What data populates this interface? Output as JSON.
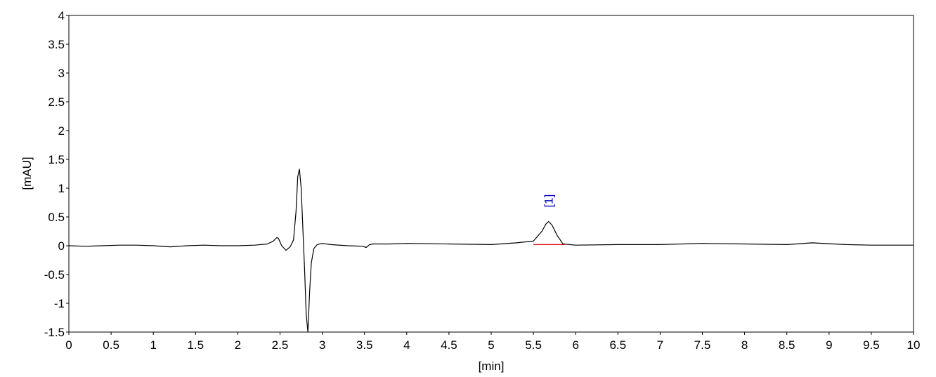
{
  "chart_data": {
    "type": "line",
    "title": "",
    "xlabel": "[min]",
    "ylabel": "[mAU]",
    "xlim": [
      0,
      10
    ],
    "ylim": [
      -1.5,
      4
    ],
    "x_ticks": [
      "0",
      "0.5",
      "1",
      "1.5",
      "2",
      "2.5",
      "3",
      "3.5",
      "4",
      "4.5",
      "5",
      "5.5",
      "6",
      "6.5",
      "7",
      "7.5",
      "8",
      "8.5",
      "9",
      "9.5",
      "10"
    ],
    "y_ticks": [
      "-1.5",
      "-1",
      "-0.5",
      "0",
      "0.5",
      "1",
      "1.5",
      "2",
      "2.5",
      "3",
      "3.5",
      "4"
    ],
    "grid": false,
    "series": [
      {
        "color": "#000000",
        "x": [
          0,
          0.2,
          0.4,
          0.6,
          0.8,
          1.0,
          1.2,
          1.4,
          1.6,
          1.8,
          2.0,
          2.2,
          2.35,
          2.42,
          2.46,
          2.48,
          2.52,
          2.57,
          2.62,
          2.66,
          2.69,
          2.71,
          2.73,
          2.75,
          2.77,
          2.79,
          2.81,
          2.83,
          2.85,
          2.87,
          2.9,
          2.94,
          3.0,
          3.1,
          3.3,
          3.48,
          3.52,
          3.56,
          3.6,
          3.8,
          4.0,
          4.5,
          5.0,
          5.3,
          5.5,
          5.6,
          5.65,
          5.68,
          5.72,
          5.78,
          5.85,
          6.0,
          6.5,
          7.0,
          7.5,
          8.0,
          8.5,
          8.8,
          9.2,
          9.5,
          10.0
        ],
        "y": [
          0.0,
          -0.01,
          0.0,
          0.01,
          0.01,
          0.0,
          -0.02,
          0.0,
          0.01,
          0.0,
          0.0,
          0.01,
          0.03,
          0.08,
          0.14,
          0.13,
          0.0,
          -0.08,
          -0.02,
          0.1,
          0.6,
          1.2,
          1.33,
          1.0,
          0.3,
          -0.4,
          -1.2,
          -1.5,
          -0.8,
          -0.3,
          -0.05,
          0.02,
          0.04,
          0.02,
          0.0,
          -0.01,
          -0.03,
          0.02,
          0.03,
          0.03,
          0.04,
          0.03,
          0.02,
          0.05,
          0.08,
          0.25,
          0.38,
          0.42,
          0.36,
          0.18,
          0.03,
          0.01,
          0.02,
          0.02,
          0.04,
          0.03,
          0.02,
          0.05,
          0.02,
          0.01,
          0.01
        ]
      }
    ],
    "baseline": {
      "color": "#e00000",
      "x": [
        5.5,
        5.87
      ],
      "y": [
        0.02,
        0.02
      ]
    },
    "annotations": [
      {
        "text": "[1]",
        "x": 5.68,
        "y": 0.42,
        "color": "#0000c0"
      }
    ]
  }
}
